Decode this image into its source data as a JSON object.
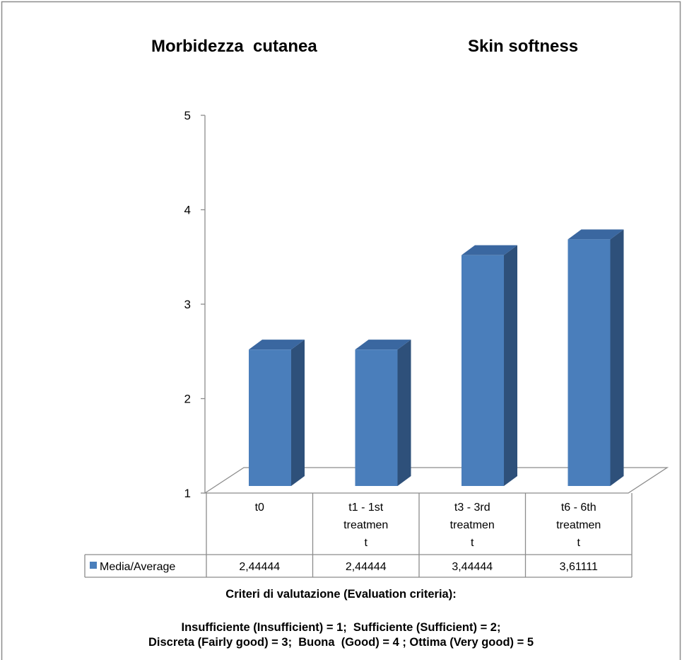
{
  "titles": {
    "left": "Morbidezza  cutanea",
    "right": "Skin softness"
  },
  "chart_data": {
    "type": "bar",
    "categories": [
      [
        "t0"
      ],
      [
        "t1 - 1st",
        "treatmen",
        "t"
      ],
      [
        "t3 -  3rd",
        "treatmen",
        "t"
      ],
      [
        "t6 -   6th",
        "treatmen",
        "t"
      ]
    ],
    "series": [
      {
        "name": "Media/Average",
        "values": [
          2.44444,
          2.44444,
          3.44444,
          3.61111
        ],
        "labels": [
          "2,44444",
          "2,44444",
          "3,44444",
          "3,61111"
        ]
      }
    ],
    "ylim": [
      1,
      5
    ],
    "yticks": [
      "1",
      "2",
      "3",
      "4",
      "5"
    ],
    "data_table": true,
    "colors": {
      "front": "#4A7EBB",
      "side": "#2E507A",
      "top": "#3A67A0"
    }
  },
  "footer": {
    "criteria_title": "Criteri di valutazione (Evaluation criteria):",
    "line1": "Insufficiente (Insufficient) = 1;  Sufficiente (Sufficient) = 2;",
    "line2": "Discreta (Fairly good) = 3;  Buona  (Good) = 4 ; Ottima (Very good) = 5"
  }
}
